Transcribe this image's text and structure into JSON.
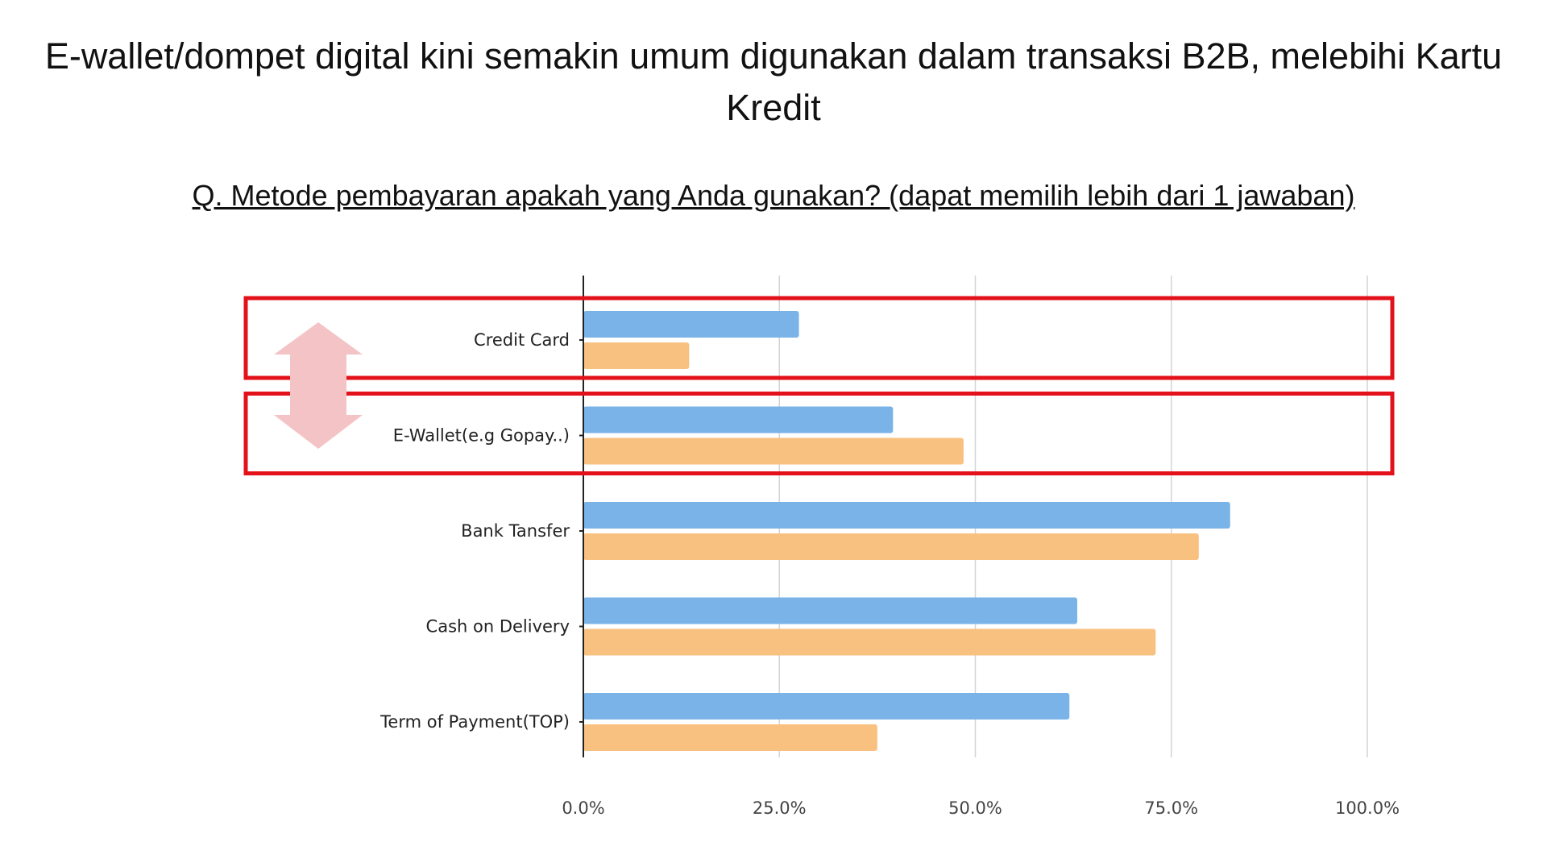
{
  "title": "E-wallet/dompet digital kini semakin umum digunakan dalam transaksi B2B, melebihi Kartu Kredit",
  "question": "Q. Metode pembayaran apakah yang Anda gunakan? (dapat memilih lebih dari 1 jawaban)",
  "colors": {
    "series_blue": "#7ab3e8",
    "series_orange": "#f9c17f",
    "highlight_box": "#e3121a",
    "compare_arrow": "#f4c3c5",
    "gridline": "#d4d4d4",
    "axis": "#222222"
  },
  "chart_data": {
    "type": "bar",
    "orientation": "horizontal",
    "categories": [
      "Credit Card",
      "E-Wallet(e.g Gopay..)",
      "Bank Tansfer",
      "Cash on Delivery",
      "Term of Payment(TOP)"
    ],
    "series": [
      {
        "values": [
          27.5,
          39.5,
          82.5,
          63.0,
          62.0
        ]
      },
      {
        "values": [
          13.5,
          48.5,
          78.5,
          73.0,
          37.5
        ]
      }
    ],
    "xlim": [
      0,
      100
    ],
    "xticks": [
      "0.0%",
      "25.0%",
      "50.0%",
      "75.0%",
      "100.0%"
    ],
    "grid": true,
    "legend": "none",
    "highlighted_categories": [
      "Credit Card",
      "E-Wallet(e.g Gopay..)"
    ]
  }
}
